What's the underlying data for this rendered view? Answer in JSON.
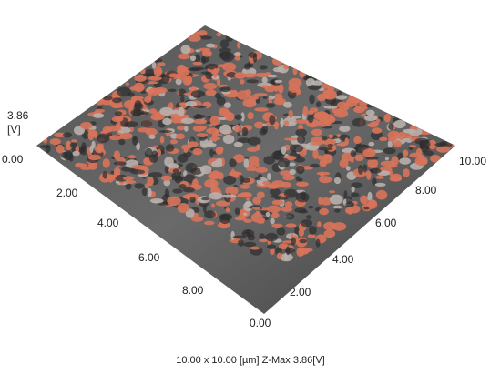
{
  "z_axis": {
    "max": "3.86",
    "unit": "[V]"
  },
  "left_axis": {
    "ticks": [
      "0.00",
      "2.00",
      "4.00",
      "6.00",
      "8.00"
    ]
  },
  "right_axis": {
    "ticks": [
      "0.00",
      "2.00",
      "4.00",
      "6.00",
      "8.00",
      "10.00"
    ]
  },
  "caption": "10.00 x 10.00 [µm]  Z-Max 3.86[V]"
}
